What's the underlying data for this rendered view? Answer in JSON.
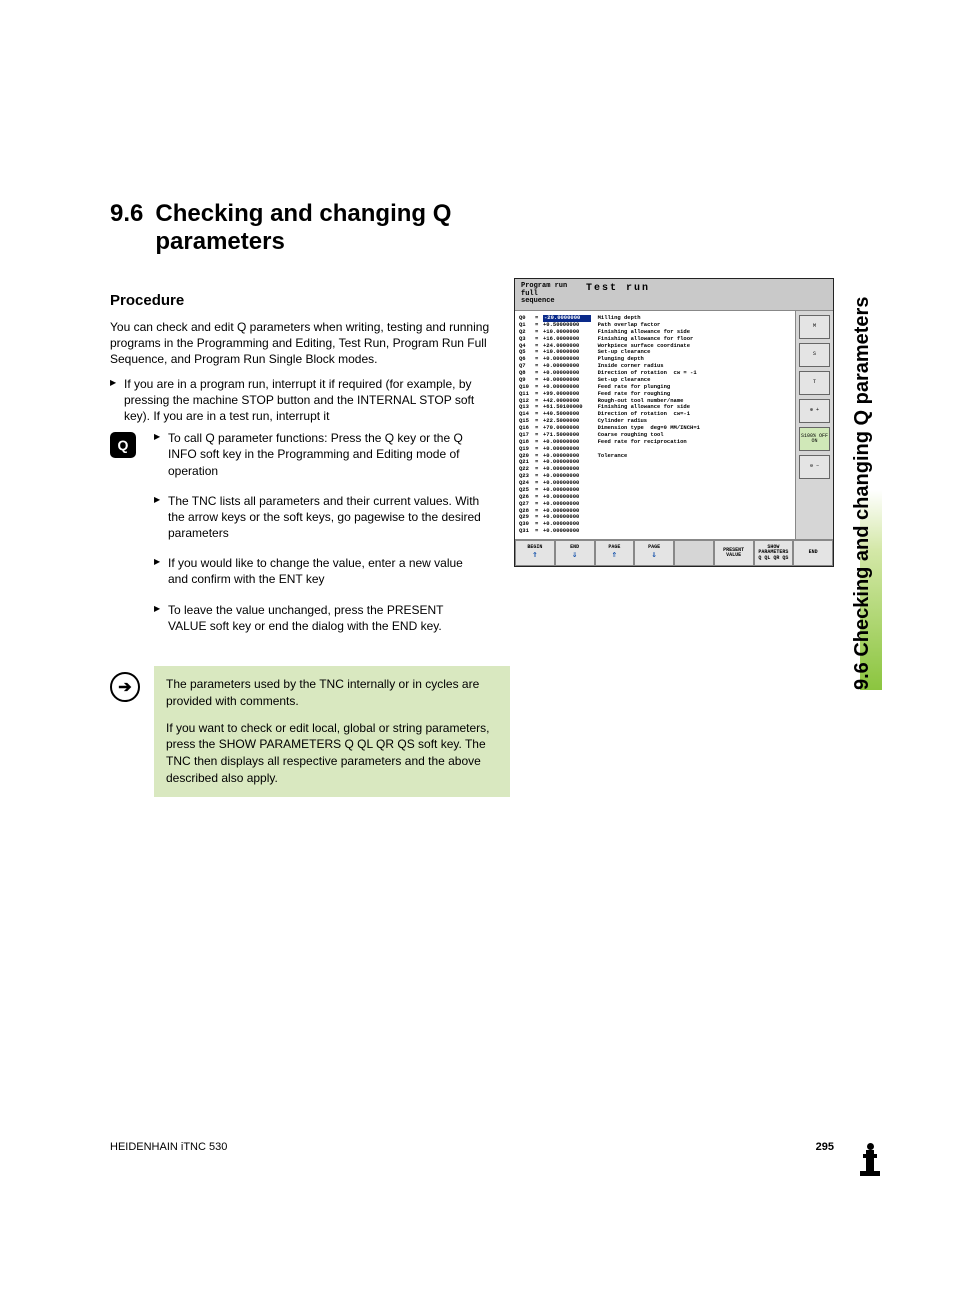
{
  "heading": {
    "number": "9.6",
    "title": "Checking and changing Q parameters"
  },
  "subheading": "Procedure",
  "intro": "You can check and edit Q parameters when writing, testing and running programs in the Programming and Editing, Test Run, Program Run Full Sequence, and Program Run Single Block modes.",
  "bullet1": "If you are in a program run, interrupt it if required (for example, by pressing the machine STOP button and the INTERNAL STOP soft key). If you are in a test run, interrupt it",
  "q_icon": "Q",
  "q_bullets": [
    "To call Q parameter functions: Press the Q key or the Q INFO soft key in the Programming and Editing mode of operation",
    "The TNC lists all parameters and their current values. With the arrow keys or the soft keys, go pagewise to the desired parameters",
    "If you would like to change the value, enter a new value and confirm with the ENT key",
    "To leave the value unchanged, press the PRESENT VALUE soft key or end the dialog with the END key."
  ],
  "note": {
    "p1": "The parameters used by the TNC internally or in cycles are provided with comments.",
    "p2": "If you want to check or edit local, global or string parameters, press the SHOW PARAMETERS Q QL QR QS soft key. The TNC then displays all respective parameters and the above described also apply."
  },
  "screenshot": {
    "header_left": "Program run\nfull sequence",
    "header_right": "Test run",
    "rows": [
      {
        "q": "Q0",
        "val": "-20.0000000",
        "desc": "Milling depth",
        "hl": true
      },
      {
        "q": "Q1",
        "val": "+0.50000000",
        "desc": "Path overlap factor"
      },
      {
        "q": "Q2",
        "val": "+10.0000000",
        "desc": "Finishing allowance for side"
      },
      {
        "q": "Q3",
        "val": "+16.0000000",
        "desc": "Finishing allowance for floor"
      },
      {
        "q": "Q4",
        "val": "+24.0000000",
        "desc": "Workpiece surface coordinate"
      },
      {
        "q": "Q5",
        "val": "+10.0000000",
        "desc": "Set-up clearance"
      },
      {
        "q": "Q6",
        "val": "+0.00000000",
        "desc": "Plunging depth"
      },
      {
        "q": "Q7",
        "val": "+0.00000000",
        "desc": "Inside corner radius"
      },
      {
        "q": "Q8",
        "val": "+0.00000000",
        "desc": "Direction of rotation  cw = -1"
      },
      {
        "q": "Q9",
        "val": "+0.00000000",
        "desc": "Set-up clearance"
      },
      {
        "q": "Q10",
        "val": "+0.00000000",
        "desc": "Feed rate for plunging"
      },
      {
        "q": "Q11",
        "val": "+99.0000000",
        "desc": "Feed rate for roughing"
      },
      {
        "q": "Q12",
        "val": "+42.0000000",
        "desc": "Rough-out tool number/name"
      },
      {
        "q": "Q13",
        "val": "+61.50100000",
        "desc": "Finishing allowance for side"
      },
      {
        "q": "Q14",
        "val": "+40.5000000",
        "desc": "Direction of rotation  cw=-1"
      },
      {
        "q": "Q15",
        "val": "+22.5000000",
        "desc": "Cylinder radius"
      },
      {
        "q": "Q16",
        "val": "+70.0000000",
        "desc": "Dimension type  deg=0 MM/INCH=1"
      },
      {
        "q": "Q17",
        "val": "+71.5000000",
        "desc": "Coarse roughing tool"
      },
      {
        "q": "Q18",
        "val": "+0.00000000",
        "desc": "Feed rate for reciprocation"
      },
      {
        "q": "Q19",
        "val": "+0.00000000",
        "desc": ""
      },
      {
        "q": "Q20",
        "val": "+0.00000000",
        "desc": "Tolerance"
      },
      {
        "q": "Q21",
        "val": "+0.00000000",
        "desc": ""
      },
      {
        "q": "Q22",
        "val": "+0.00000000",
        "desc": ""
      },
      {
        "q": "Q23",
        "val": "+0.00000000",
        "desc": ""
      },
      {
        "q": "Q24",
        "val": "+0.00000000",
        "desc": ""
      },
      {
        "q": "Q25",
        "val": "+0.00000000",
        "desc": ""
      },
      {
        "q": "Q26",
        "val": "+0.00000000",
        "desc": ""
      },
      {
        "q": "Q27",
        "val": "+0.00000000",
        "desc": ""
      },
      {
        "q": "Q28",
        "val": "+0.00000000",
        "desc": ""
      },
      {
        "q": "Q29",
        "val": "+0.00000000",
        "desc": ""
      },
      {
        "q": "Q30",
        "val": "+0.00000000",
        "desc": ""
      },
      {
        "q": "Q31",
        "val": "+0.00000000",
        "desc": ""
      }
    ],
    "side_buttons": [
      "M",
      "S",
      "T",
      "⊕ +",
      "S100%\nOFF  ON",
      "⊖ −"
    ],
    "footer_buttons": [
      {
        "label": "BEGIN",
        "arrow": "⇑"
      },
      {
        "label": "END",
        "arrow": "⇓"
      },
      {
        "label": "PAGE",
        "arrow": "⇑"
      },
      {
        "label": "PAGE",
        "arrow": "⇓"
      },
      {
        "label": "",
        "arrow": ""
      },
      {
        "label": "PRESENT\nVALUE",
        "arrow": ""
      },
      {
        "label": "SHOW\nPARAMETERS\nQ QL QR QS",
        "arrow": ""
      },
      {
        "label": "END",
        "arrow": ""
      }
    ]
  },
  "side_tab": "9.6 Checking and changing Q parameters",
  "footer": {
    "left": "HEIDENHAIN iTNC 530",
    "page": "295"
  }
}
